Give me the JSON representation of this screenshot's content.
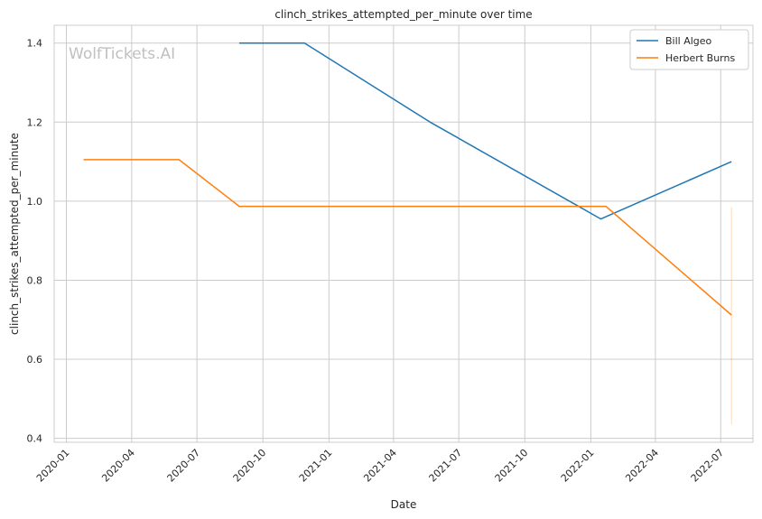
{
  "chart_data": {
    "type": "line",
    "title": "clinch_strikes_attempted_per_minute over time",
    "xlabel": "Date",
    "ylabel": "clinch_strikes_attempted_per_minute",
    "watermark": "WolfTickets.AI",
    "x_ticks": [
      "2020-01",
      "2020-04",
      "2020-07",
      "2020-10",
      "2021-01",
      "2021-04",
      "2021-07",
      "2021-10",
      "2022-01",
      "2022-04",
      "2022-07"
    ],
    "xlim": [
      "2019-12-15",
      "2022-08-15"
    ],
    "y_ticks": [
      "0.4",
      "0.6",
      "0.8",
      "1.0",
      "1.2",
      "1.4"
    ],
    "ylim": [
      0.39,
      1.445
    ],
    "grid": true,
    "legend_position": "top-right",
    "series": [
      {
        "name": "Bill Algeo",
        "color": "#1f77b4",
        "points": [
          {
            "x": "2020-08-29",
            "y": 1.4
          },
          {
            "x": "2020-11-28",
            "y": 1.4
          },
          {
            "x": "2021-05-22",
            "y": 1.2
          },
          {
            "x": "2022-01-15",
            "y": 0.955
          },
          {
            "x": "2022-07-16",
            "y": 1.1
          }
        ]
      },
      {
        "name": "Herbert Burns",
        "color": "#ff7f0e",
        "points": [
          {
            "x": "2020-01-25",
            "y": 1.105
          },
          {
            "x": "2020-06-06",
            "y": 1.105
          },
          {
            "x": "2020-08-29",
            "y": 0.987
          },
          {
            "x": "2022-01-22",
            "y": 0.987
          },
          {
            "x": "2022-07-16",
            "y": 0.712
          }
        ]
      }
    ],
    "extra_line": {
      "x": "2022-07-16",
      "y_from": 0.435,
      "y_to": 0.985,
      "color": "#ff7f0e"
    }
  }
}
